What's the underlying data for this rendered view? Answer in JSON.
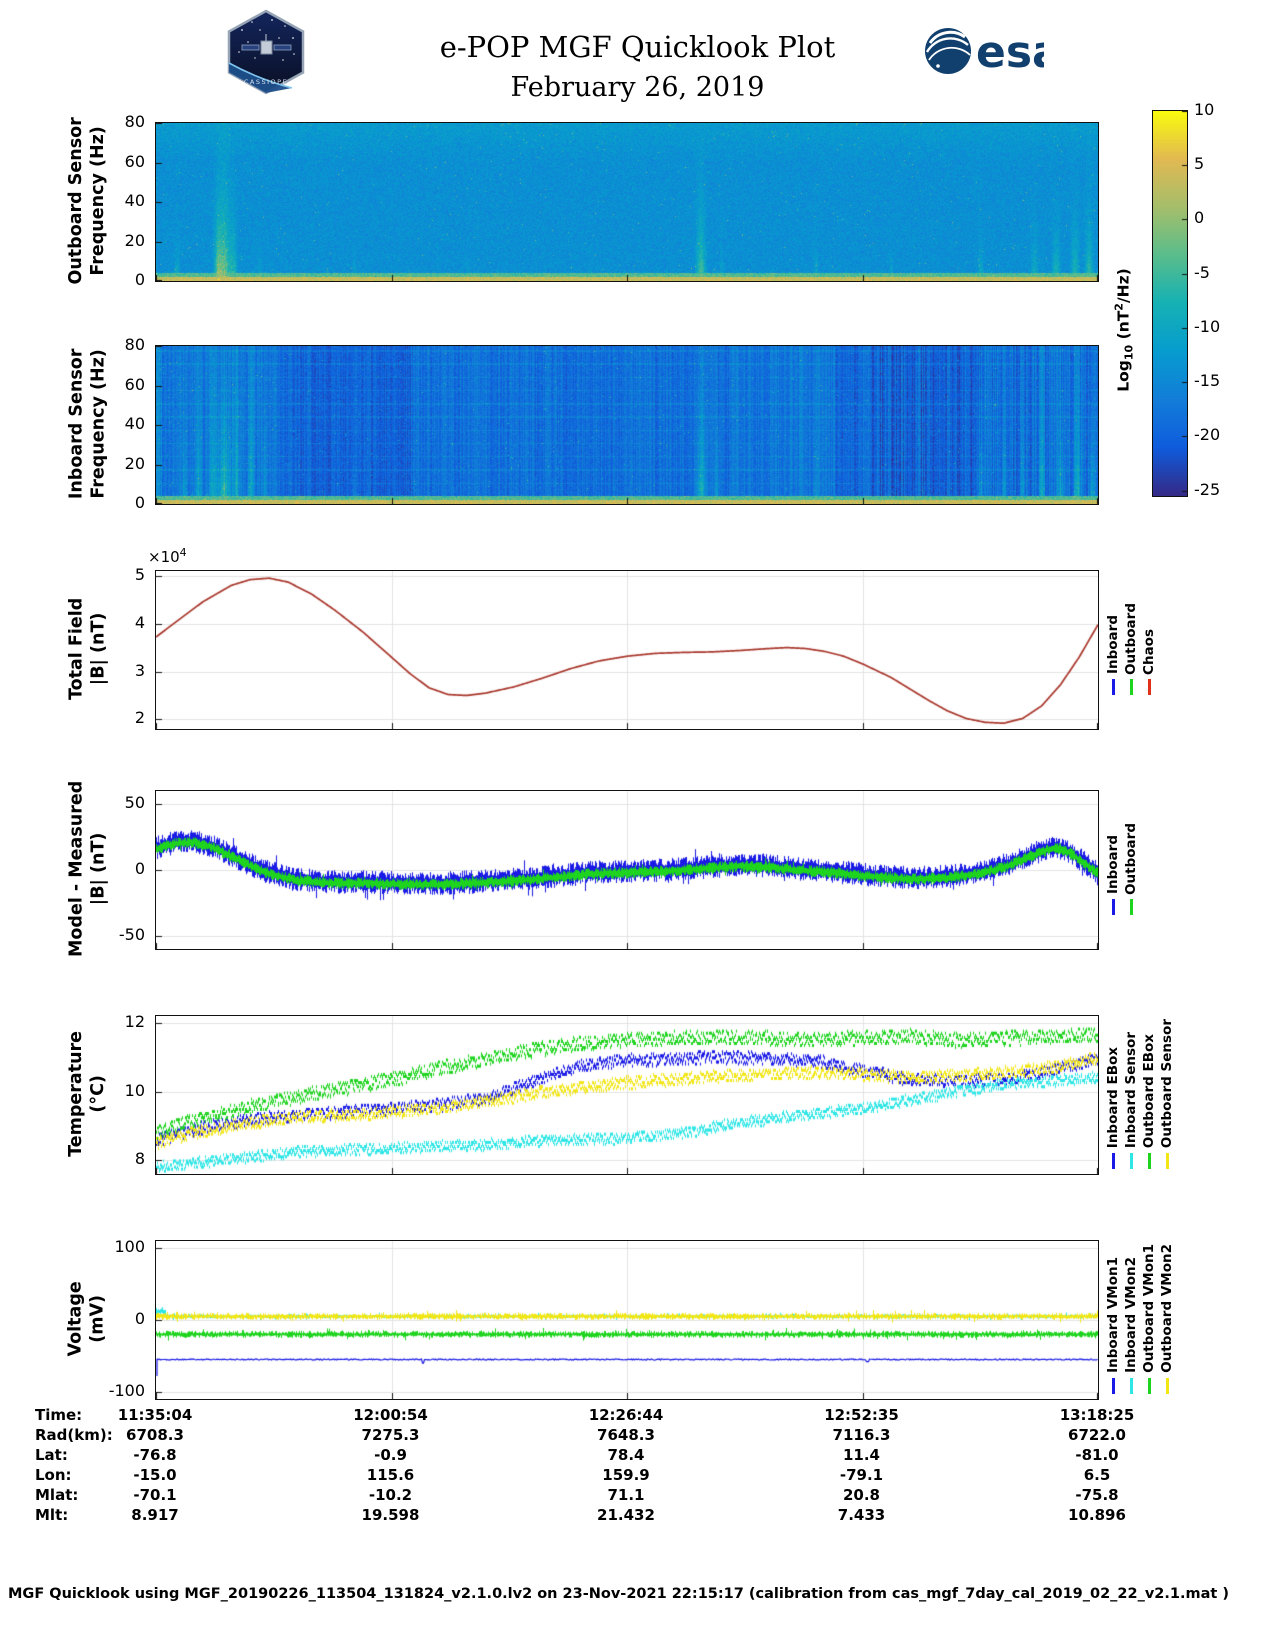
{
  "page": {
    "title": "e-POP MGF Quicklook Plot",
    "subtitle": "February 26, 2019"
  },
  "logos": {
    "cassiope_caption": "CASSIOPE",
    "esa_text": "esa"
  },
  "colorbar": {
    "label_pre": "Log",
    "label_sub": "10",
    "label_mid": " (nT",
    "label_sup": "2",
    "label_post": "/Hz)",
    "vmax": 10,
    "vmin": -25.5,
    "ticks": [
      10,
      5,
      0,
      -5,
      -10,
      -15,
      -20,
      -25
    ]
  },
  "time_ticks": [
    "11:35:04",
    "12:00:54",
    "12:26:44",
    "12:52:35",
    "13:18:25"
  ],
  "ephemeris": {
    "rows": [
      {
        "label": "Time:",
        "values": [
          "11:35:04",
          "12:00:54",
          "12:26:44",
          "12:52:35",
          "13:18:25"
        ]
      },
      {
        "label": "Rad(km):",
        "values": [
          "6708.3",
          "7275.3",
          "7648.3",
          "7116.3",
          "6722.0"
        ]
      },
      {
        "label": "Lat:",
        "values": [
          "-76.8",
          "-0.9",
          "78.4",
          "11.4",
          "-81.0"
        ]
      },
      {
        "label": "Lon:",
        "values": [
          "-15.0",
          "115.6",
          "159.9",
          "-79.1",
          "6.5"
        ]
      },
      {
        "label": "Mlat:",
        "values": [
          "-70.1",
          "-10.2",
          "71.1",
          "20.8",
          "-75.8"
        ]
      },
      {
        "label": "Mlt:",
        "values": [
          "8.917",
          "19.598",
          "21.432",
          "7.433",
          "10.896"
        ]
      }
    ]
  },
  "footer": "MGF Quicklook using MGF_20190226_113504_131824_v2.1.0.lv2 on 23-Nov-2021 22:15:17 (calibration from cas_mgf_7day_cal_2019_02_22_v2.1.mat )",
  "chart_data": [
    {
      "id": "outboard_spectrogram",
      "type": "heatmap",
      "ylabel": [
        "Outboard Sensor",
        "Frequency (Hz)"
      ],
      "ylim": [
        0,
        80
      ],
      "yticks": [
        0,
        20,
        40,
        60,
        80
      ],
      "value_scale": "Log10 (nT^2/Hz)",
      "background_level": -14,
      "noise_sigma": 2.2,
      "speckle_prob": 0.004,
      "low_freq_band": {
        "yellow_below_hz": 2.2,
        "green_below_hz": 4.5
      },
      "events": [
        {
          "x": 0.022,
          "w": 0.004,
          "h": 10,
          "b": 8
        },
        {
          "x": 0.065,
          "w": 0.006,
          "h": 22,
          "b": 13
        },
        {
          "x": 0.072,
          "w": 0.01,
          "h": 30,
          "b": 16
        },
        {
          "x": 0.082,
          "w": 0.005,
          "h": 18,
          "b": 11
        },
        {
          "x": 0.11,
          "w": 0.003,
          "h": 8,
          "b": 6
        },
        {
          "x": 0.21,
          "w": 0.003,
          "h": 8,
          "b": 5
        },
        {
          "x": 0.33,
          "w": 0.003,
          "h": 6,
          "b": 4
        },
        {
          "x": 0.46,
          "w": 0.003,
          "h": 6,
          "b": 4
        },
        {
          "x": 0.578,
          "w": 0.007,
          "h": 24,
          "b": 13
        },
        {
          "x": 0.6,
          "w": 0.003,
          "h": 10,
          "b": 6
        },
        {
          "x": 0.7,
          "w": 0.004,
          "h": 10,
          "b": 6
        },
        {
          "x": 0.78,
          "w": 0.003,
          "h": 8,
          "b": 5
        },
        {
          "x": 0.875,
          "w": 0.004,
          "h": 12,
          "b": 7
        },
        {
          "x": 0.932,
          "w": 0.005,
          "h": 14,
          "b": 8
        },
        {
          "x": 0.955,
          "w": 0.006,
          "h": 16,
          "b": 9
        },
        {
          "x": 0.975,
          "w": 0.006,
          "h": 18,
          "b": 10
        },
        {
          "x": 0.99,
          "w": 0.006,
          "h": 20,
          "b": 11
        }
      ]
    },
    {
      "id": "inboard_spectrogram",
      "type": "heatmap",
      "ylabel": [
        "Inboard Sensor",
        "Frequency (Hz)"
      ],
      "ylim": [
        0,
        80
      ],
      "yticks": [
        0,
        20,
        40,
        60,
        80
      ],
      "value_scale": "Log10 (nT^2/Hz)",
      "background_level": -20,
      "noise_sigma": 2.0,
      "col_jitter": 2.2,
      "stripe_spacing_hz": 6.7,
      "speckle_prob": 0.006,
      "low_freq_band": {
        "yellow_below_hz": 2.2,
        "green_below_hz": 4.5
      },
      "region_shifts": [
        {
          "x0": 0,
          "x1": 0.006,
          "dv": 5
        },
        {
          "x0": 0.006,
          "x1": 0.13,
          "dv": 2.5
        },
        {
          "x0": 0.27,
          "x1": 0.61,
          "dv": 1.5
        },
        {
          "x0": 0.61,
          "x1": 0.72,
          "dv": 2.5
        },
        {
          "x0": 0.87,
          "x1": 1.01,
          "dv": 1.5
        }
      ],
      "events": [
        {
          "x": 0.03,
          "w": 0.004,
          "h": 30,
          "b": 7
        },
        {
          "x": 0.045,
          "w": 0.005,
          "h": 45,
          "b": 8
        },
        {
          "x": 0.06,
          "w": 0.006,
          "h": 55,
          "b": 9
        },
        {
          "x": 0.072,
          "w": 0.01,
          "h": 40,
          "b": 14
        },
        {
          "x": 0.085,
          "w": 0.006,
          "h": 55,
          "b": 9
        },
        {
          "x": 0.1,
          "w": 0.005,
          "h": 50,
          "b": 8
        },
        {
          "x": 0.115,
          "w": 0.004,
          "h": 35,
          "b": 7
        },
        {
          "x": 0.21,
          "w": 0.003,
          "h": 10,
          "b": 5
        },
        {
          "x": 0.578,
          "w": 0.008,
          "h": 50,
          "b": 12
        },
        {
          "x": 0.595,
          "w": 0.004,
          "h": 25,
          "b": 7
        },
        {
          "x": 0.7,
          "w": 0.004,
          "h": 12,
          "b": 5
        },
        {
          "x": 0.875,
          "w": 0.005,
          "h": 30,
          "b": 7
        },
        {
          "x": 0.9,
          "w": 0.004,
          "h": 25,
          "b": 6
        },
        {
          "x": 0.92,
          "w": 0.005,
          "h": 30,
          "b": 7
        },
        {
          "x": 0.94,
          "w": 0.005,
          "h": 35,
          "b": 8
        },
        {
          "x": 0.96,
          "w": 0.006,
          "h": 30,
          "b": 9
        },
        {
          "x": 0.978,
          "w": 0.006,
          "h": 35,
          "b": 10
        },
        {
          "x": 0.993,
          "w": 0.005,
          "h": 30,
          "b": 10
        }
      ]
    },
    {
      "id": "total_field",
      "type": "line",
      "ylabel": [
        "Total Field",
        "|B| (nT)"
      ],
      "scale_label": {
        "prefix": "×10",
        "exponent": "4"
      },
      "ylim": [
        1.8,
        5.1
      ],
      "yticks": [
        5,
        4,
        3,
        2
      ],
      "legend": [
        {
          "label": "Inboard",
          "color": "#1a1ae6"
        },
        {
          "label": "Outboard",
          "color": "#1ed41e"
        },
        {
          "label": "Chaos",
          "color": "#e03018"
        }
      ],
      "series_note": "Inboard, Outboard and Chaos model curves are visually coincident",
      "plot_color": "#a8352a",
      "x": [
        0,
        0.02,
        0.05,
        0.08,
        0.1,
        0.12,
        0.14,
        0.165,
        0.19,
        0.22,
        0.25,
        0.27,
        0.29,
        0.31,
        0.33,
        0.35,
        0.38,
        0.41,
        0.44,
        0.47,
        0.5,
        0.53,
        0.56,
        0.59,
        0.62,
        0.65,
        0.67,
        0.69,
        0.71,
        0.73,
        0.75,
        0.78,
        0.8,
        0.82,
        0.84,
        0.86,
        0.88,
        0.9,
        0.92,
        0.94,
        0.96,
        0.98,
        1
      ],
      "values_1e4": [
        3.72,
        4.02,
        4.46,
        4.8,
        4.92,
        4.95,
        4.87,
        4.62,
        4.28,
        3.82,
        3.3,
        2.95,
        2.66,
        2.52,
        2.5,
        2.55,
        2.68,
        2.86,
        3.06,
        3.22,
        3.32,
        3.38,
        3.4,
        3.41,
        3.44,
        3.48,
        3.5,
        3.48,
        3.42,
        3.32,
        3.16,
        2.88,
        2.64,
        2.4,
        2.18,
        2.02,
        1.94,
        1.92,
        2.02,
        2.28,
        2.72,
        3.3,
        3.98
      ]
    },
    {
      "id": "model_minus_measured",
      "type": "line",
      "ylabel": [
        "Model - Measured",
        "|B| (nT)"
      ],
      "ylim": [
        -60,
        60
      ],
      "yticks": [
        50,
        0,
        -50
      ],
      "legend": [
        {
          "label": "Inboard",
          "color": "#1a1ae6"
        },
        {
          "label": "Outboard",
          "color": "#1ed41e"
        }
      ],
      "center_x": [
        0,
        0.02,
        0.04,
        0.06,
        0.08,
        0.1,
        0.12,
        0.15,
        0.18,
        0.22,
        0.26,
        0.3,
        0.34,
        0.38,
        0.42,
        0.46,
        0.5,
        0.54,
        0.58,
        0.62,
        0.65,
        0.68,
        0.72,
        0.76,
        0.8,
        0.84,
        0.87,
        0.9,
        0.92,
        0.94,
        0.955,
        0.97,
        0.985,
        1
      ],
      "center_y": [
        17,
        21,
        22,
        18,
        11,
        4,
        -2,
        -7,
        -9,
        -9,
        -10,
        -10,
        -9,
        -7,
        -5,
        -2,
        -1,
        0,
        2,
        4,
        3,
        1,
        -1,
        -4,
        -6,
        -5,
        -2,
        3,
        9,
        15,
        18,
        14,
        6,
        -2
      ],
      "series": [
        {
          "name": "Inboard",
          "color": "#1a1ae6",
          "spread": 9,
          "offset": 0
        },
        {
          "name": "Outboard",
          "color": "#1ed41e",
          "spread": 4.5,
          "offset": -1
        }
      ]
    },
    {
      "id": "temperature",
      "type": "line",
      "ylabel": [
        "Temperature",
        "(°C)"
      ],
      "ylim": [
        7.6,
        12.2
      ],
      "yticks": [
        12,
        10,
        8
      ],
      "legend": [
        {
          "label": "Inboard EBox",
          "color": "#1a1ae6"
        },
        {
          "label": "Inboard Sensor",
          "color": "#2ee6e6"
        },
        {
          "label": "Outboard EBox",
          "color": "#1ed41e"
        },
        {
          "label": "Outboard Sensor",
          "color": "#f2e614"
        }
      ],
      "series": [
        {
          "name": "Inboard EBox",
          "color": "#1a1ae6",
          "spread": 0.17,
          "x": [
            0,
            0.05,
            0.1,
            0.15,
            0.2,
            0.25,
            0.3,
            0.35,
            0.4,
            0.45,
            0.5,
            0.55,
            0.6,
            0.65,
            0.7,
            0.75,
            0.8,
            0.85,
            0.9,
            0.95,
            1
          ],
          "y": [
            8.6,
            8.95,
            9.2,
            9.3,
            9.4,
            9.5,
            9.6,
            9.8,
            10.3,
            10.75,
            10.9,
            10.95,
            11.0,
            10.95,
            10.9,
            10.6,
            10.35,
            10.3,
            10.35,
            10.6,
            10.95
          ]
        },
        {
          "name": "Inboard Sensor",
          "color": "#2ee6e6",
          "spread": 0.15,
          "x": [
            0,
            0.05,
            0.1,
            0.15,
            0.2,
            0.25,
            0.3,
            0.35,
            0.4,
            0.45,
            0.5,
            0.55,
            0.6,
            0.65,
            0.7,
            0.75,
            0.8,
            0.85,
            0.9,
            0.95,
            1
          ],
          "y": [
            7.8,
            7.95,
            8.1,
            8.25,
            8.3,
            8.35,
            8.4,
            8.45,
            8.55,
            8.6,
            8.65,
            8.75,
            9.0,
            9.2,
            9.35,
            9.5,
            9.75,
            10.0,
            10.2,
            10.3,
            10.4
          ]
        },
        {
          "name": "Outboard EBox",
          "color": "#1ed41e",
          "spread": 0.2,
          "x": [
            0,
            0.05,
            0.1,
            0.15,
            0.2,
            0.25,
            0.3,
            0.35,
            0.4,
            0.45,
            0.5,
            0.55,
            0.6,
            0.65,
            0.7,
            0.75,
            0.8,
            0.85,
            0.9,
            0.95,
            1
          ],
          "y": [
            8.8,
            9.25,
            9.55,
            9.85,
            10.1,
            10.35,
            10.65,
            10.95,
            11.2,
            11.4,
            11.5,
            11.55,
            11.6,
            11.55,
            11.5,
            11.55,
            11.6,
            11.5,
            11.55,
            11.6,
            11.65
          ]
        },
        {
          "name": "Outboard Sensor",
          "color": "#f2e614",
          "spread": 0.17,
          "x": [
            0,
            0.05,
            0.1,
            0.15,
            0.2,
            0.25,
            0.3,
            0.35,
            0.4,
            0.45,
            0.5,
            0.55,
            0.6,
            0.65,
            0.7,
            0.75,
            0.8,
            0.85,
            0.9,
            0.95,
            1
          ],
          "y": [
            8.5,
            8.85,
            9.1,
            9.25,
            9.3,
            9.4,
            9.5,
            9.7,
            9.95,
            10.1,
            10.25,
            10.35,
            10.45,
            10.5,
            10.55,
            10.5,
            10.4,
            10.45,
            10.55,
            10.7,
            11.0
          ]
        }
      ]
    },
    {
      "id": "voltage",
      "type": "line",
      "ylabel": [
        "Voltage",
        "(mV)"
      ],
      "ylim": [
        -110,
        110
      ],
      "yticks": [
        100,
        0,
        -100
      ],
      "legend": [
        {
          "label": "Inboard VMon1",
          "color": "#1a1ae6"
        },
        {
          "label": "Inboard VMon2",
          "color": "#2ee6e6"
        },
        {
          "label": "Outboard VMon1",
          "color": "#1ed41e"
        },
        {
          "label": "Outboard VMon2",
          "color": "#f2e614"
        }
      ],
      "series": [
        {
          "name": "Inboard VMon1",
          "color": "#1a1ae6",
          "baseline": -55,
          "spread": 0.8,
          "startup": {
            "from": -78,
            "until_x": 0.003
          },
          "dips": [
            {
              "x": 0.283,
              "v": -60
            },
            {
              "x": 0.755,
              "v": -58
            }
          ]
        },
        {
          "name": "Inboard VMon2",
          "color": "#2ee6e6",
          "baseline": 5,
          "spread": 3,
          "segments": [
            {
              "x0": 0,
              "x1": 0.01,
              "baseline": 12,
              "spread": 6
            }
          ]
        },
        {
          "name": "Outboard VMon1",
          "color": "#1ed41e",
          "baseline": -20,
          "spread": 5
        },
        {
          "name": "Outboard VMon2",
          "color": "#f2e614",
          "baseline": 5,
          "spread": 5
        }
      ]
    }
  ]
}
